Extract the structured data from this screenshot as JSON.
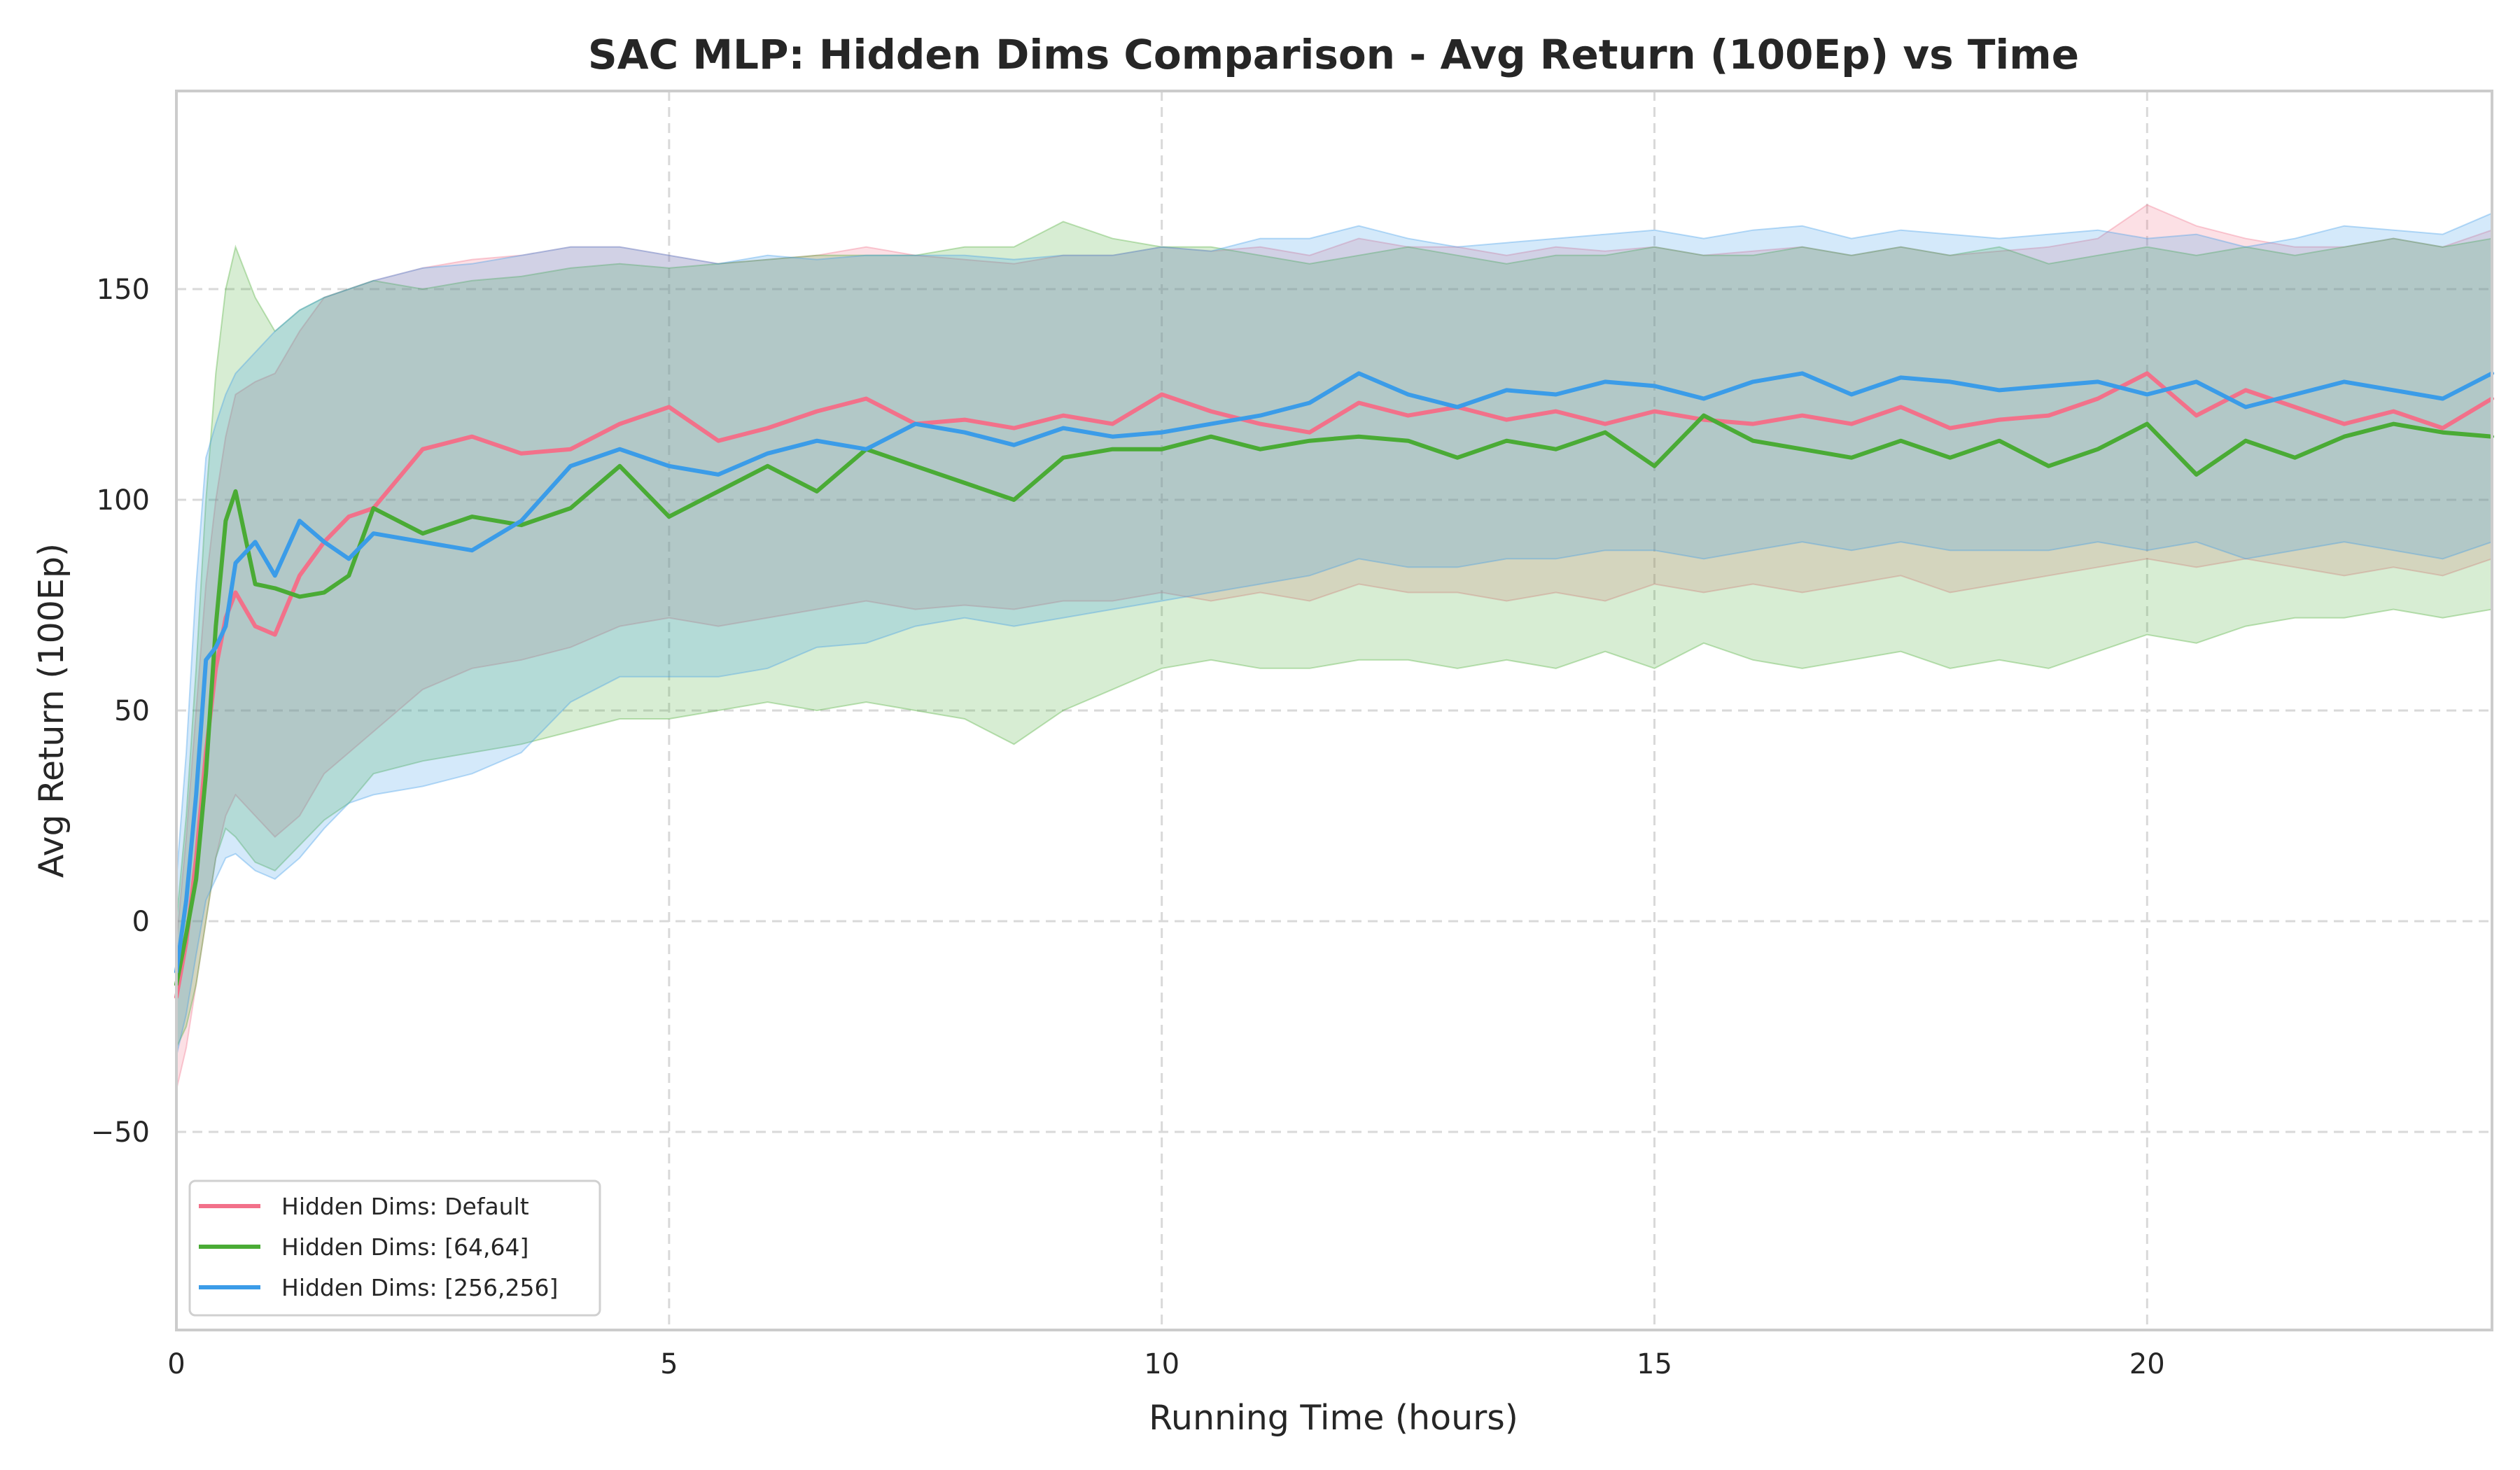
{
  "chart_data": {
    "type": "line",
    "title": "SAC MLP: Hidden Dims Comparison - Avg Return (100Ep) vs Time",
    "xlabel": "Running Time (hours)",
    "ylabel": "Avg Return (100Ep)",
    "xlim": [
      0,
      23.5
    ],
    "ylim": [
      -97,
      197
    ],
    "xticks": [
      0,
      5,
      10,
      15,
      20
    ],
    "yticks": [
      -50,
      0,
      50,
      100,
      150
    ],
    "xtick_labels": [
      "0",
      "5",
      "10",
      "15",
      "20"
    ],
    "ytick_labels": [
      "−50",
      "0",
      "50",
      "100",
      "150"
    ],
    "grid": true,
    "legend_position": "bottom-left",
    "colors": {
      "default": "#f2718a",
      "h64": "#4aab35",
      "h256": "#3b9ce8"
    },
    "x": [
      0,
      0.1,
      0.2,
      0.3,
      0.4,
      0.5,
      0.6,
      0.8,
      1.0,
      1.25,
      1.5,
      1.75,
      2.0,
      2.5,
      3.0,
      3.5,
      4.0,
      4.5,
      5.0,
      5.5,
      6.0,
      6.5,
      7.0,
      7.5,
      8.0,
      8.5,
      9.0,
      9.5,
      10.0,
      10.5,
      11.0,
      11.5,
      12.0,
      12.5,
      13.0,
      13.5,
      14.0,
      14.5,
      15.0,
      15.5,
      16.0,
      16.5,
      17.0,
      17.5,
      18.0,
      18.5,
      19.0,
      19.5,
      20.0,
      20.5,
      21.0,
      21.5,
      22.0,
      22.5,
      23.0,
      23.5
    ],
    "series": [
      {
        "name": "Hidden Dims: Default",
        "color": "#f2718a",
        "values": [
          -18,
          -5,
          15,
          40,
          60,
          72,
          78,
          70,
          68,
          82,
          90,
          96,
          98,
          112,
          115,
          111,
          112,
          118,
          122,
          114,
          117,
          121,
          124,
          118,
          119,
          117,
          120,
          118,
          125,
          121,
          118,
          116,
          123,
          120,
          122,
          119,
          121,
          118,
          121,
          119,
          118,
          120,
          118,
          122,
          117,
          119,
          120,
          124,
          130,
          120,
          126,
          122,
          118,
          121,
          117,
          124
        ],
        "upper": [
          -5,
          20,
          50,
          80,
          100,
          115,
          125,
          128,
          130,
          140,
          148,
          150,
          152,
          155,
          157,
          158,
          160,
          160,
          158,
          156,
          157,
          158,
          160,
          158,
          157,
          156,
          158,
          158,
          160,
          159,
          160,
          158,
          162,
          160,
          160,
          158,
          160,
          159,
          160,
          158,
          159,
          160,
          158,
          160,
          158,
          159,
          160,
          162,
          170,
          165,
          162,
          160,
          160,
          162,
          160,
          164
        ],
        "lower": [
          -40,
          -30,
          -15,
          0,
          15,
          25,
          30,
          25,
          20,
          25,
          35,
          40,
          45,
          55,
          60,
          62,
          65,
          70,
          72,
          70,
          72,
          74,
          76,
          74,
          75,
          74,
          76,
          76,
          78,
          76,
          78,
          76,
          80,
          78,
          78,
          76,
          78,
          76,
          80,
          78,
          80,
          78,
          80,
          82,
          78,
          80,
          82,
          84,
          86,
          84,
          86,
          84,
          82,
          84,
          82,
          86
        ]
      },
      {
        "name": "Hidden Dims: [64,64]",
        "color": "#4aab35",
        "values": [
          -15,
          -3,
          10,
          35,
          70,
          95,
          102,
          80,
          79,
          77,
          78,
          82,
          98,
          92,
          96,
          94,
          98,
          108,
          96,
          102,
          108,
          102,
          112,
          108,
          104,
          100,
          110,
          112,
          112,
          115,
          112,
          114,
          115,
          114,
          110,
          114,
          112,
          116,
          108,
          120,
          114,
          112,
          110,
          114,
          110,
          114,
          108,
          112,
          118,
          106,
          114,
          110,
          115,
          118,
          116,
          115
        ],
        "upper": [
          0,
          25,
          60,
          100,
          130,
          150,
          160,
          148,
          140,
          145,
          148,
          150,
          152,
          150,
          152,
          153,
          155,
          156,
          155,
          156,
          157,
          158,
          158,
          158,
          160,
          160,
          166,
          162,
          160,
          160,
          158,
          156,
          158,
          160,
          158,
          156,
          158,
          158,
          160,
          158,
          158,
          160,
          158,
          160,
          158,
          160,
          156,
          158,
          160,
          158,
          160,
          158,
          160,
          162,
          160,
          162
        ],
        "lower": [
          -30,
          -25,
          -15,
          0,
          15,
          22,
          20,
          14,
          12,
          18,
          24,
          28,
          35,
          38,
          40,
          42,
          45,
          48,
          48,
          50,
          52,
          50,
          52,
          50,
          48,
          42,
          50,
          55,
          60,
          62,
          60,
          60,
          62,
          62,
          60,
          62,
          60,
          64,
          60,
          66,
          62,
          60,
          62,
          64,
          60,
          62,
          60,
          64,
          68,
          66,
          70,
          72,
          72,
          74,
          72,
          74
        ]
      },
      {
        "name": "Hidden Dims: [256,256]",
        "color": "#3b9ce8",
        "values": [
          -12,
          5,
          30,
          62,
          65,
          70,
          85,
          90,
          82,
          95,
          90,
          86,
          92,
          90,
          88,
          95,
          108,
          112,
          108,
          106,
          111,
          114,
          112,
          118,
          116,
          113,
          117,
          115,
          116,
          118,
          120,
          123,
          130,
          125,
          122,
          126,
          125,
          128,
          127,
          124,
          128,
          130,
          125,
          129,
          128,
          126,
          127,
          128,
          125,
          128,
          122,
          125,
          128,
          126,
          124,
          130
        ],
        "upper": [
          10,
          40,
          80,
          110,
          118,
          125,
          130,
          135,
          140,
          145,
          148,
          150,
          152,
          155,
          156,
          158,
          160,
          160,
          158,
          156,
          158,
          157,
          158,
          158,
          158,
          157,
          158,
          158,
          160,
          159,
          162,
          162,
          165,
          162,
          160,
          161,
          162,
          163,
          164,
          162,
          164,
          165,
          162,
          164,
          163,
          162,
          163,
          164,
          162,
          163,
          160,
          162,
          165,
          164,
          163,
          168
        ],
        "lower": [
          -32,
          -22,
          -8,
          5,
          10,
          15,
          16,
          12,
          10,
          15,
          22,
          28,
          30,
          32,
          35,
          40,
          52,
          58,
          58,
          58,
          60,
          65,
          66,
          70,
          72,
          70,
          72,
          74,
          76,
          78,
          80,
          82,
          86,
          84,
          84,
          86,
          86,
          88,
          88,
          86,
          88,
          90,
          88,
          90,
          88,
          88,
          88,
          90,
          88,
          90,
          86,
          88,
          90,
          88,
          86,
          90
        ]
      }
    ]
  }
}
